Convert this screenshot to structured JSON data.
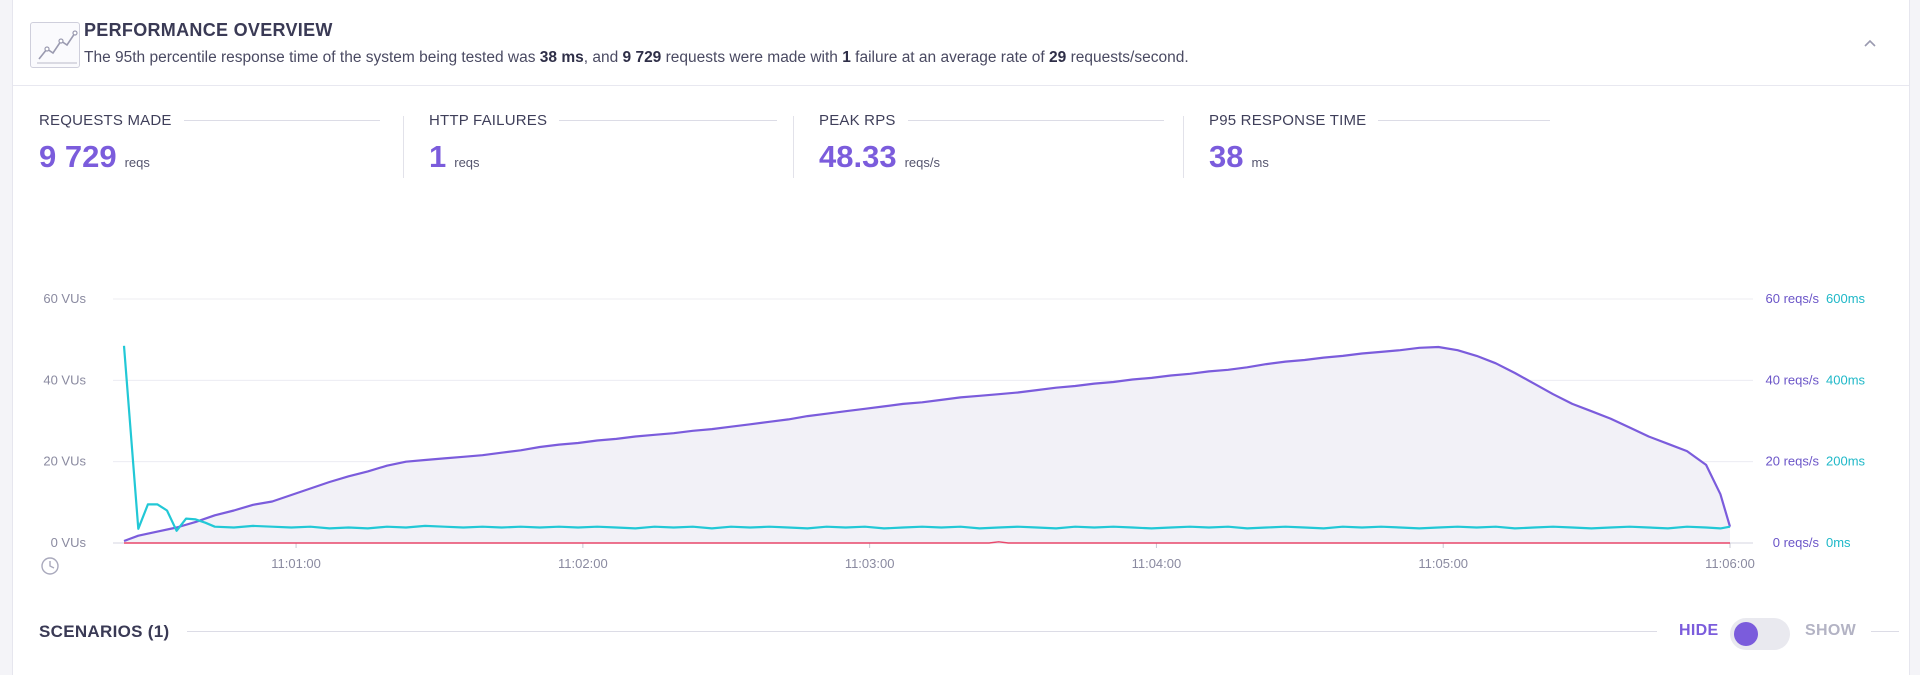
{
  "header": {
    "title": "PERFORMANCE OVERVIEW",
    "desc": {
      "p1": "The 95th percentile response time of the system being tested was ",
      "b1": "38 ms",
      "p2": ", and ",
      "b2": "9 729",
      "p3": " requests were made with ",
      "b3": "1",
      "p4": " failure at an average rate of ",
      "b4": "29",
      "p5": " requests/second."
    },
    "icon": "chart-icon",
    "collapse_icon": "chevron-up-icon"
  },
  "stats": [
    {
      "label": "REQUESTS MADE",
      "value": "9 729",
      "unit": "reqs"
    },
    {
      "label": "HTTP FAILURES",
      "value": "1",
      "unit": "reqs"
    },
    {
      "label": "PEAK RPS",
      "value": "48.33",
      "unit": "reqs/s"
    },
    {
      "label": "P95 RESPONSE TIME",
      "value": "38",
      "unit": "ms"
    }
  ],
  "chart_data": {
    "type": "line",
    "left_axis": {
      "ticks": [
        "60 VUs",
        "40 VUs",
        "20 VUs",
        "0 VUs"
      ],
      "range": [
        0,
        60
      ]
    },
    "right_axis_rps": {
      "ticks": [
        "60 reqs/s",
        "40 reqs/s",
        "20 reqs/s",
        "0 reqs/s"
      ],
      "range": [
        0,
        60
      ]
    },
    "right_axis_ms": {
      "ticks": [
        "600ms",
        "400ms",
        "200ms",
        "0ms"
      ],
      "range": [
        0,
        600
      ]
    },
    "x_ticks": [
      "11:01:00",
      "11:02:00",
      "11:03:00",
      "11:04:00",
      "11:05:00",
      "11:06:00"
    ],
    "x_tick_seconds": [
      60,
      120,
      180,
      240,
      300,
      360
    ],
    "x_range_seconds": [
      24,
      360
    ],
    "series": [
      {
        "axis": "rps",
        "color": "#7b5cdc",
        "fill": "#f2f1f7",
        "points": [
          [
            24,
            0.5
          ],
          [
            27,
            1.8
          ],
          [
            31,
            2.8
          ],
          [
            35,
            3.8
          ],
          [
            39,
            5.2
          ],
          [
            43,
            6.8
          ],
          [
            47,
            8
          ],
          [
            51,
            9.4
          ],
          [
            55,
            10.2
          ],
          [
            59,
            11.8
          ],
          [
            63,
            13.4
          ],
          [
            67,
            15
          ],
          [
            71,
            16.4
          ],
          [
            75,
            17.6
          ],
          [
            79,
            19
          ],
          [
            83,
            20
          ],
          [
            87,
            20.4
          ],
          [
            91,
            20.8
          ],
          [
            95,
            21.2
          ],
          [
            99,
            21.6
          ],
          [
            103,
            22.2
          ],
          [
            107,
            22.8
          ],
          [
            111,
            23.6
          ],
          [
            115,
            24.2
          ],
          [
            119,
            24.6
          ],
          [
            123,
            25.2
          ],
          [
            127,
            25.6
          ],
          [
            131,
            26.2
          ],
          [
            135,
            26.6
          ],
          [
            139,
            27
          ],
          [
            143,
            27.6
          ],
          [
            147,
            28
          ],
          [
            151,
            28.6
          ],
          [
            155,
            29.2
          ],
          [
            159,
            29.8
          ],
          [
            163,
            30.4
          ],
          [
            167,
            31.2
          ],
          [
            171,
            31.8
          ],
          [
            175,
            32.4
          ],
          [
            179,
            33
          ],
          [
            183,
            33.6
          ],
          [
            187,
            34.2
          ],
          [
            191,
            34.6
          ],
          [
            195,
            35.2
          ],
          [
            199,
            35.8
          ],
          [
            203,
            36.2
          ],
          [
            207,
            36.6
          ],
          [
            211,
            37
          ],
          [
            215,
            37.6
          ],
          [
            219,
            38.2
          ],
          [
            223,
            38.6
          ],
          [
            227,
            39.2
          ],
          [
            231,
            39.6
          ],
          [
            235,
            40.2
          ],
          [
            239,
            40.6
          ],
          [
            243,
            41.2
          ],
          [
            247,
            41.6
          ],
          [
            251,
            42.2
          ],
          [
            255,
            42.6
          ],
          [
            259,
            43.2
          ],
          [
            263,
            44
          ],
          [
            267,
            44.6
          ],
          [
            271,
            45
          ],
          [
            275,
            45.6
          ],
          [
            279,
            46
          ],
          [
            283,
            46.6
          ],
          [
            287,
            47
          ],
          [
            291,
            47.4
          ],
          [
            295,
            48
          ],
          [
            299,
            48.2
          ],
          [
            303,
            47.4
          ],
          [
            307,
            46
          ],
          [
            311,
            44.2
          ],
          [
            315,
            41.8
          ],
          [
            319,
            39.2
          ],
          [
            323,
            36.6
          ],
          [
            327,
            34.2
          ],
          [
            331,
            32.4
          ],
          [
            335,
            30.6
          ],
          [
            339,
            28.4
          ],
          [
            343,
            26.2
          ],
          [
            347,
            24.4
          ],
          [
            351,
            22.6
          ],
          [
            355,
            19.2
          ],
          [
            358,
            12
          ],
          [
            360,
            4
          ]
        ]
      },
      {
        "axis": "ms",
        "color": "#22c8d6",
        "points": [
          [
            24,
            485
          ],
          [
            27,
            35
          ],
          [
            29,
            95
          ],
          [
            31,
            95
          ],
          [
            33,
            80
          ],
          [
            35,
            30
          ],
          [
            37,
            60
          ],
          [
            39,
            58
          ],
          [
            41,
            50
          ],
          [
            43,
            40
          ],
          [
            47,
            38
          ],
          [
            51,
            42
          ],
          [
            55,
            40
          ],
          [
            59,
            38
          ],
          [
            63,
            40
          ],
          [
            67,
            36
          ],
          [
            71,
            38
          ],
          [
            75,
            36
          ],
          [
            79,
            40
          ],
          [
            83,
            38
          ],
          [
            87,
            42
          ],
          [
            91,
            40
          ],
          [
            95,
            38
          ],
          [
            99,
            40
          ],
          [
            103,
            38
          ],
          [
            107,
            40
          ],
          [
            111,
            38
          ],
          [
            115,
            40
          ],
          [
            119,
            38
          ],
          [
            123,
            40
          ],
          [
            127,
            38
          ],
          [
            131,
            36
          ],
          [
            135,
            40
          ],
          [
            139,
            38
          ],
          [
            143,
            40
          ],
          [
            147,
            36
          ],
          [
            151,
            40
          ],
          [
            155,
            38
          ],
          [
            159,
            40
          ],
          [
            163,
            38
          ],
          [
            167,
            36
          ],
          [
            171,
            40
          ],
          [
            175,
            38
          ],
          [
            179,
            40
          ],
          [
            183,
            36
          ],
          [
            187,
            38
          ],
          [
            191,
            40
          ],
          [
            195,
            38
          ],
          [
            199,
            40
          ],
          [
            203,
            36
          ],
          [
            207,
            38
          ],
          [
            211,
            40
          ],
          [
            215,
            38
          ],
          [
            219,
            36
          ],
          [
            223,
            40
          ],
          [
            227,
            38
          ],
          [
            231,
            40
          ],
          [
            235,
            38
          ],
          [
            239,
            36
          ],
          [
            243,
            38
          ],
          [
            247,
            40
          ],
          [
            251,
            38
          ],
          [
            255,
            40
          ],
          [
            259,
            36
          ],
          [
            263,
            38
          ],
          [
            267,
            40
          ],
          [
            271,
            38
          ],
          [
            275,
            36
          ],
          [
            279,
            40
          ],
          [
            283,
            38
          ],
          [
            287,
            40
          ],
          [
            291,
            38
          ],
          [
            295,
            36
          ],
          [
            299,
            38
          ],
          [
            303,
            40
          ],
          [
            307,
            38
          ],
          [
            311,
            40
          ],
          [
            315,
            36
          ],
          [
            319,
            38
          ],
          [
            323,
            40
          ],
          [
            327,
            38
          ],
          [
            331,
            36
          ],
          [
            335,
            38
          ],
          [
            339,
            40
          ],
          [
            343,
            38
          ],
          [
            347,
            36
          ],
          [
            351,
            40
          ],
          [
            355,
            38
          ],
          [
            358,
            36
          ],
          [
            360,
            40
          ]
        ]
      },
      {
        "axis": "rps",
        "color": "#e8476a",
        "points": [
          [
            24,
            0
          ],
          [
            205,
            0
          ],
          [
            207,
            0.3
          ],
          [
            209,
            0
          ],
          [
            360,
            0
          ]
        ]
      }
    ]
  },
  "scenarios": {
    "title": "SCENARIOS (1)",
    "hide_label": "HIDE",
    "show_label": "SHOW",
    "toggle_on_hide": true
  }
}
